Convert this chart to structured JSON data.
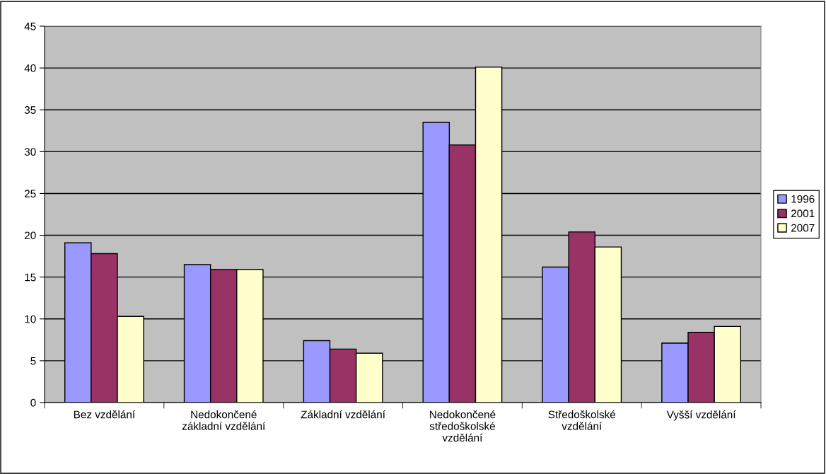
{
  "chart_data": {
    "type": "bar",
    "categories": [
      "Bez vzdělání",
      "Nedokončené\nzákladní vzdělání",
      "Základní vzdělání",
      "Nedokončené\nstředoškolské\nvzdělání",
      "Středoškolské\nvzdělání",
      "Vyšší vzdělání"
    ],
    "series": [
      {
        "name": "1996",
        "color": "#9999ff",
        "values": [
          19.1,
          16.5,
          7.4,
          33.5,
          16.2,
          7.1
        ]
      },
      {
        "name": "2001",
        "color": "#993366",
        "values": [
          17.8,
          15.9,
          6.4,
          30.8,
          20.4,
          8.4
        ]
      },
      {
        "name": "2007",
        "color": "#ffffcc",
        "values": [
          10.3,
          15.9,
          5.9,
          40.1,
          18.6,
          9.1
        ]
      }
    ],
    "ylim": [
      0,
      45
    ],
    "yticks": [
      0,
      5,
      10,
      15,
      20,
      25,
      30,
      35,
      40,
      45
    ],
    "grid": "y",
    "legend": "right"
  }
}
